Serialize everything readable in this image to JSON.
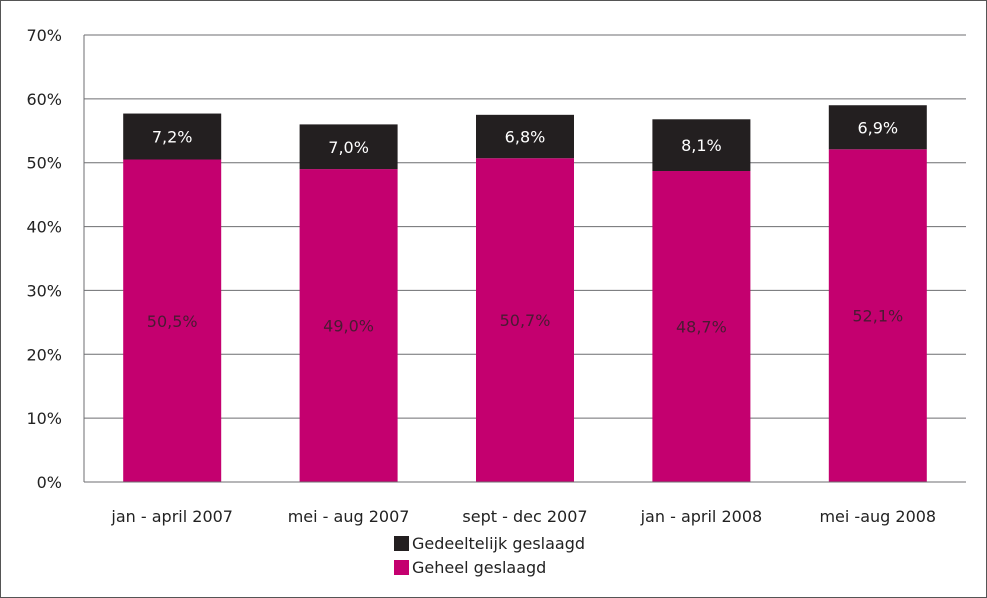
{
  "chart_data": {
    "type": "bar",
    "stacked": true,
    "categories": [
      "jan - april 2007",
      "mei - aug 2007",
      "sept - dec 2007",
      "jan - april 2008",
      "mei -aug 2008"
    ],
    "series": [
      {
        "name": "Geheel geslaagd",
        "values": [
          50.5,
          49.0,
          50.7,
          48.7,
          52.1
        ],
        "labels": [
          "50,5%",
          "49,0%",
          "50,7%",
          "48,7%",
          "52,1%"
        ],
        "color": "#c4006f",
        "label_color": "#4a1a33"
      },
      {
        "name": "Gedeeltelijk geslaagd",
        "values": [
          7.2,
          7.0,
          6.8,
          8.1,
          6.9
        ],
        "labels": [
          "7,2%",
          "7,0%",
          "6,8%",
          "8,1%",
          "6,9%"
        ],
        "color": "#231f20",
        "label_color": "#ffffff"
      }
    ],
    "ylim": [
      0,
      70
    ],
    "yticks": [
      "0%",
      "10%",
      "20%",
      "30%",
      "40%",
      "50%",
      "60%",
      "70%"
    ],
    "grid": true,
    "legend_position": "bottom-center",
    "legend_order": [
      "Gedeeltelijk geslaagd",
      "Geheel geslaagd"
    ]
  }
}
